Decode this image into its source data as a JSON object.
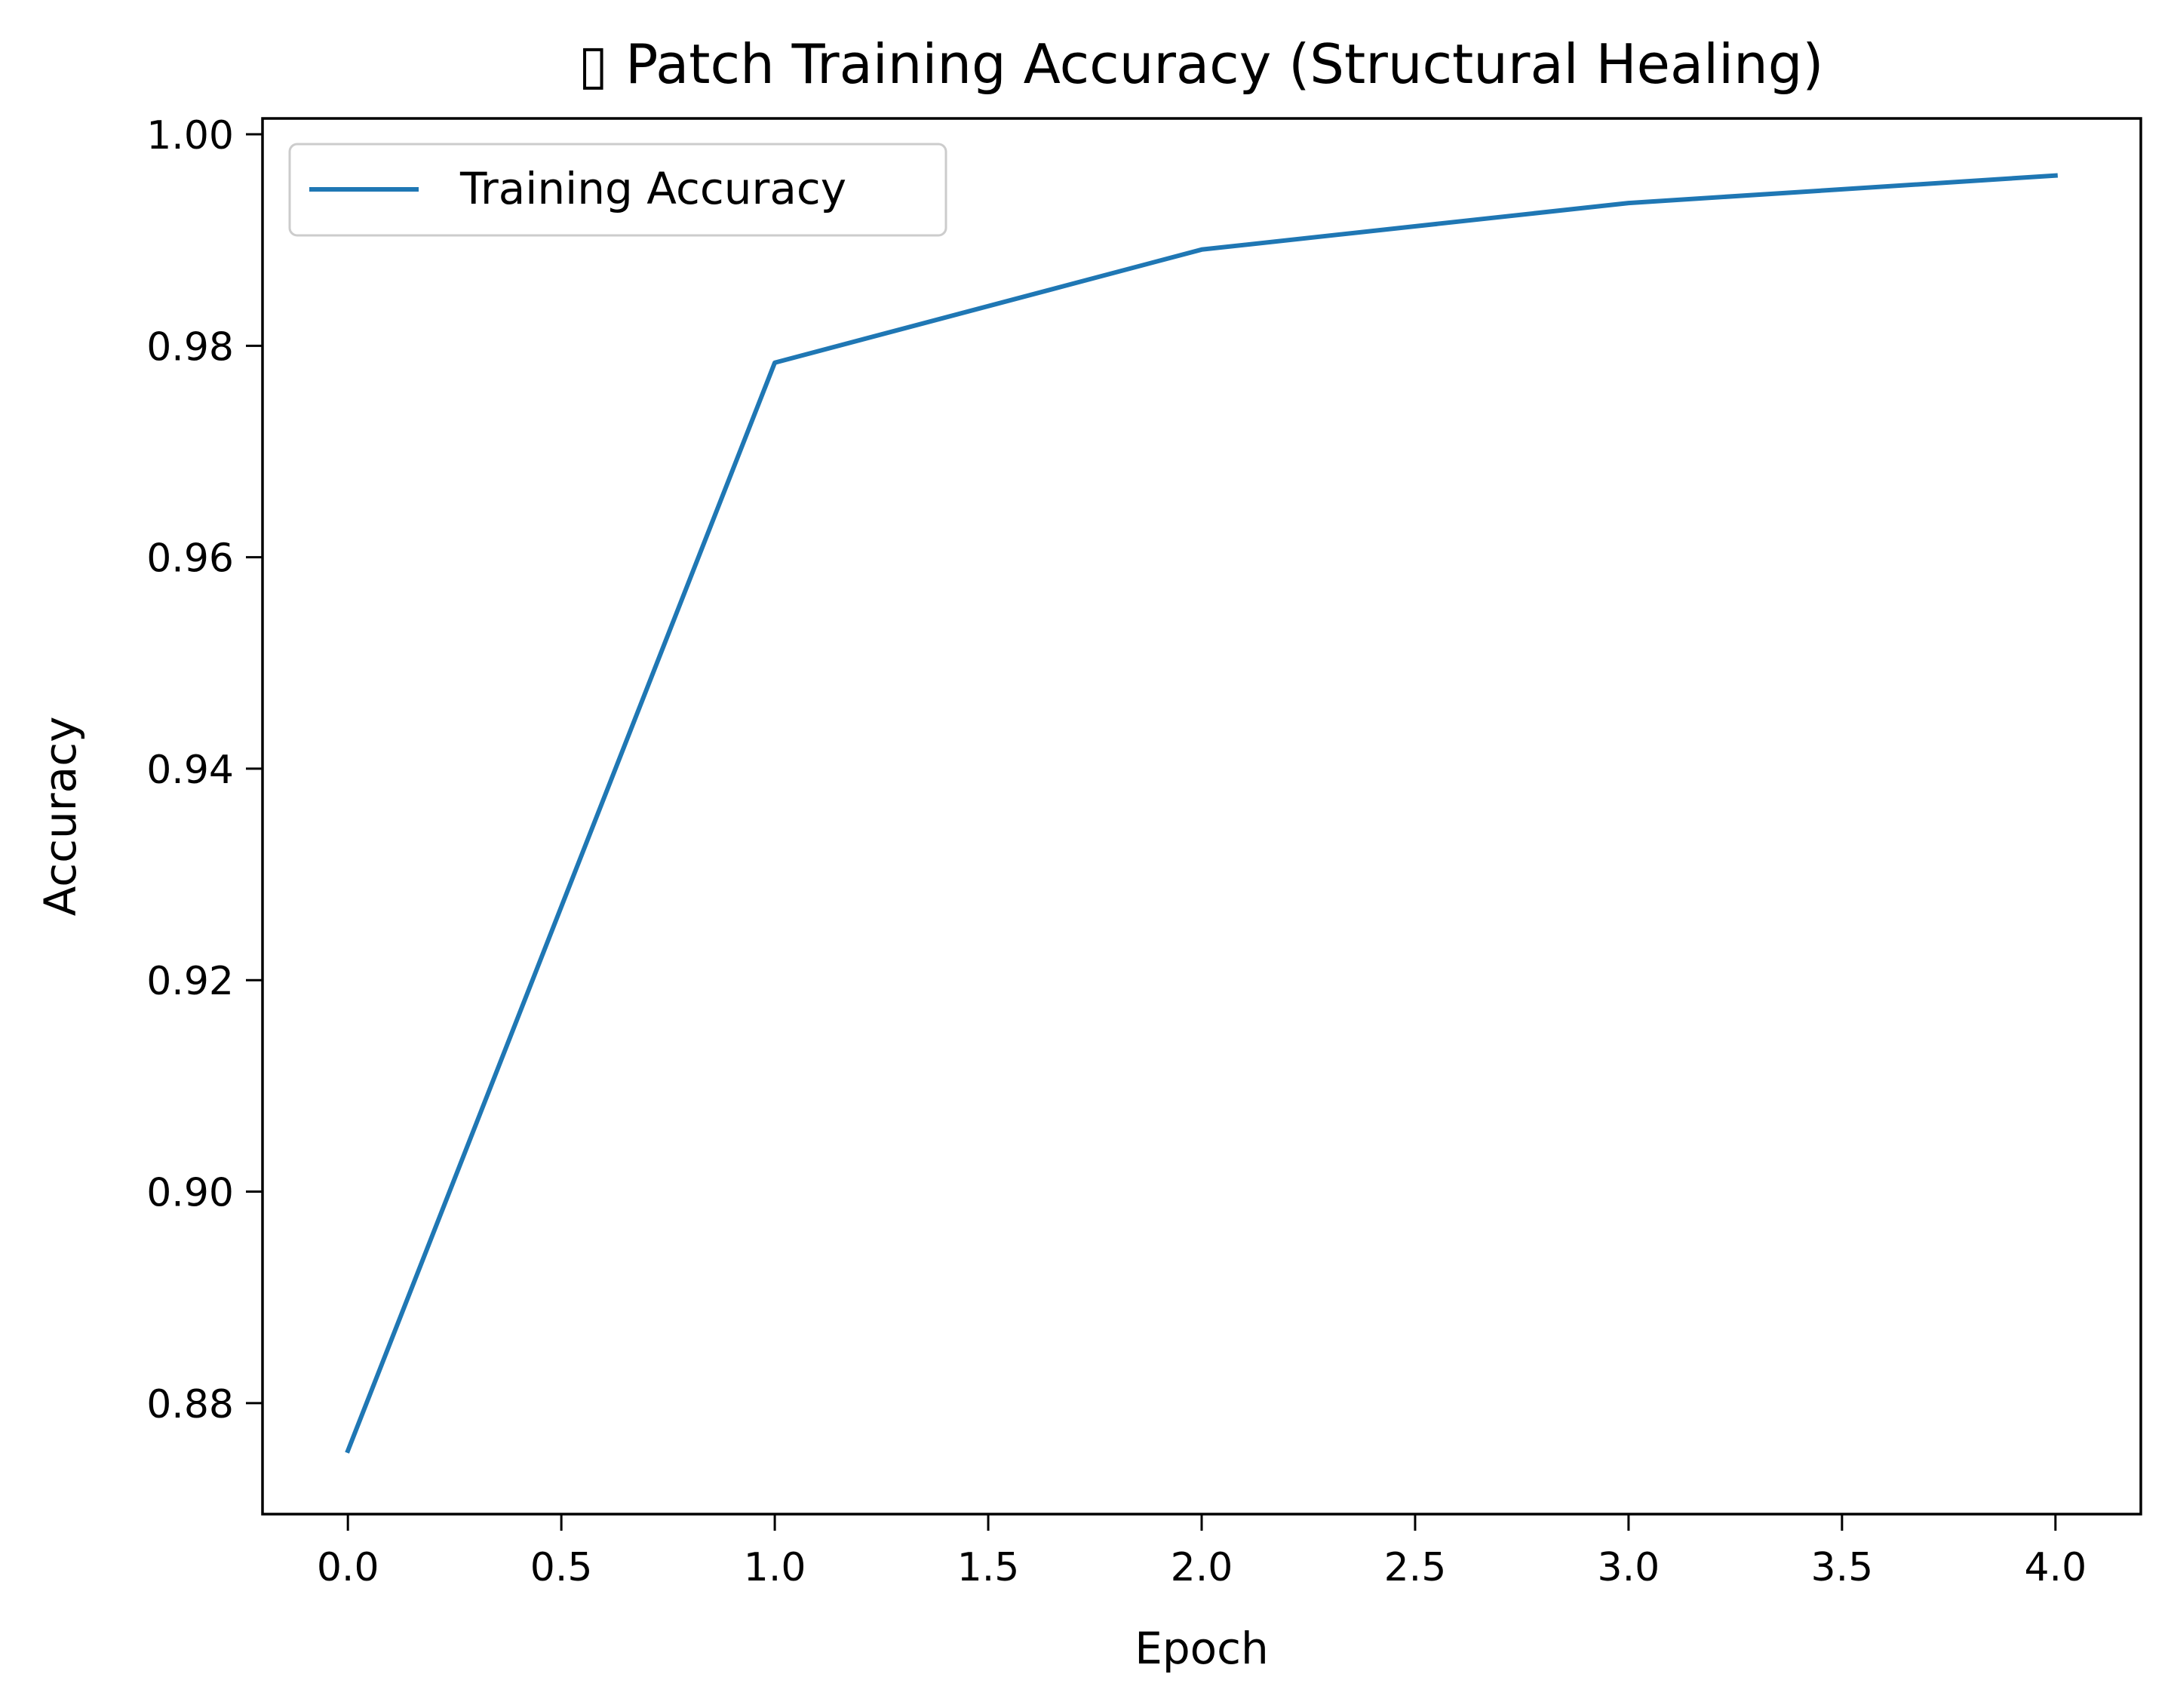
{
  "chart_data": {
    "type": "line",
    "title": "▯ Patch Training Accuracy (Structural Healing)",
    "xlabel": "Epoch",
    "ylabel": "Accuracy",
    "xlim": [
      -0.2,
      4.2
    ],
    "ylim": [
      0.8695,
      1.0015
    ],
    "xticks": [
      "0.0",
      "0.5",
      "1.0",
      "1.5",
      "2.0",
      "2.5",
      "3.0",
      "3.5",
      "4.0"
    ],
    "yticks": [
      "0.88",
      "0.90",
      "0.92",
      "0.94",
      "0.96",
      "0.98",
      "1.00"
    ],
    "grid": false,
    "legend_position": "upper-left",
    "series": [
      {
        "name": "Training Accuracy",
        "color": "#1f77b4",
        "x": [
          0,
          1,
          2,
          3,
          4
        ],
        "y": [
          0.8755,
          0.9784,
          0.9891,
          0.9935,
          0.9961
        ]
      }
    ]
  }
}
